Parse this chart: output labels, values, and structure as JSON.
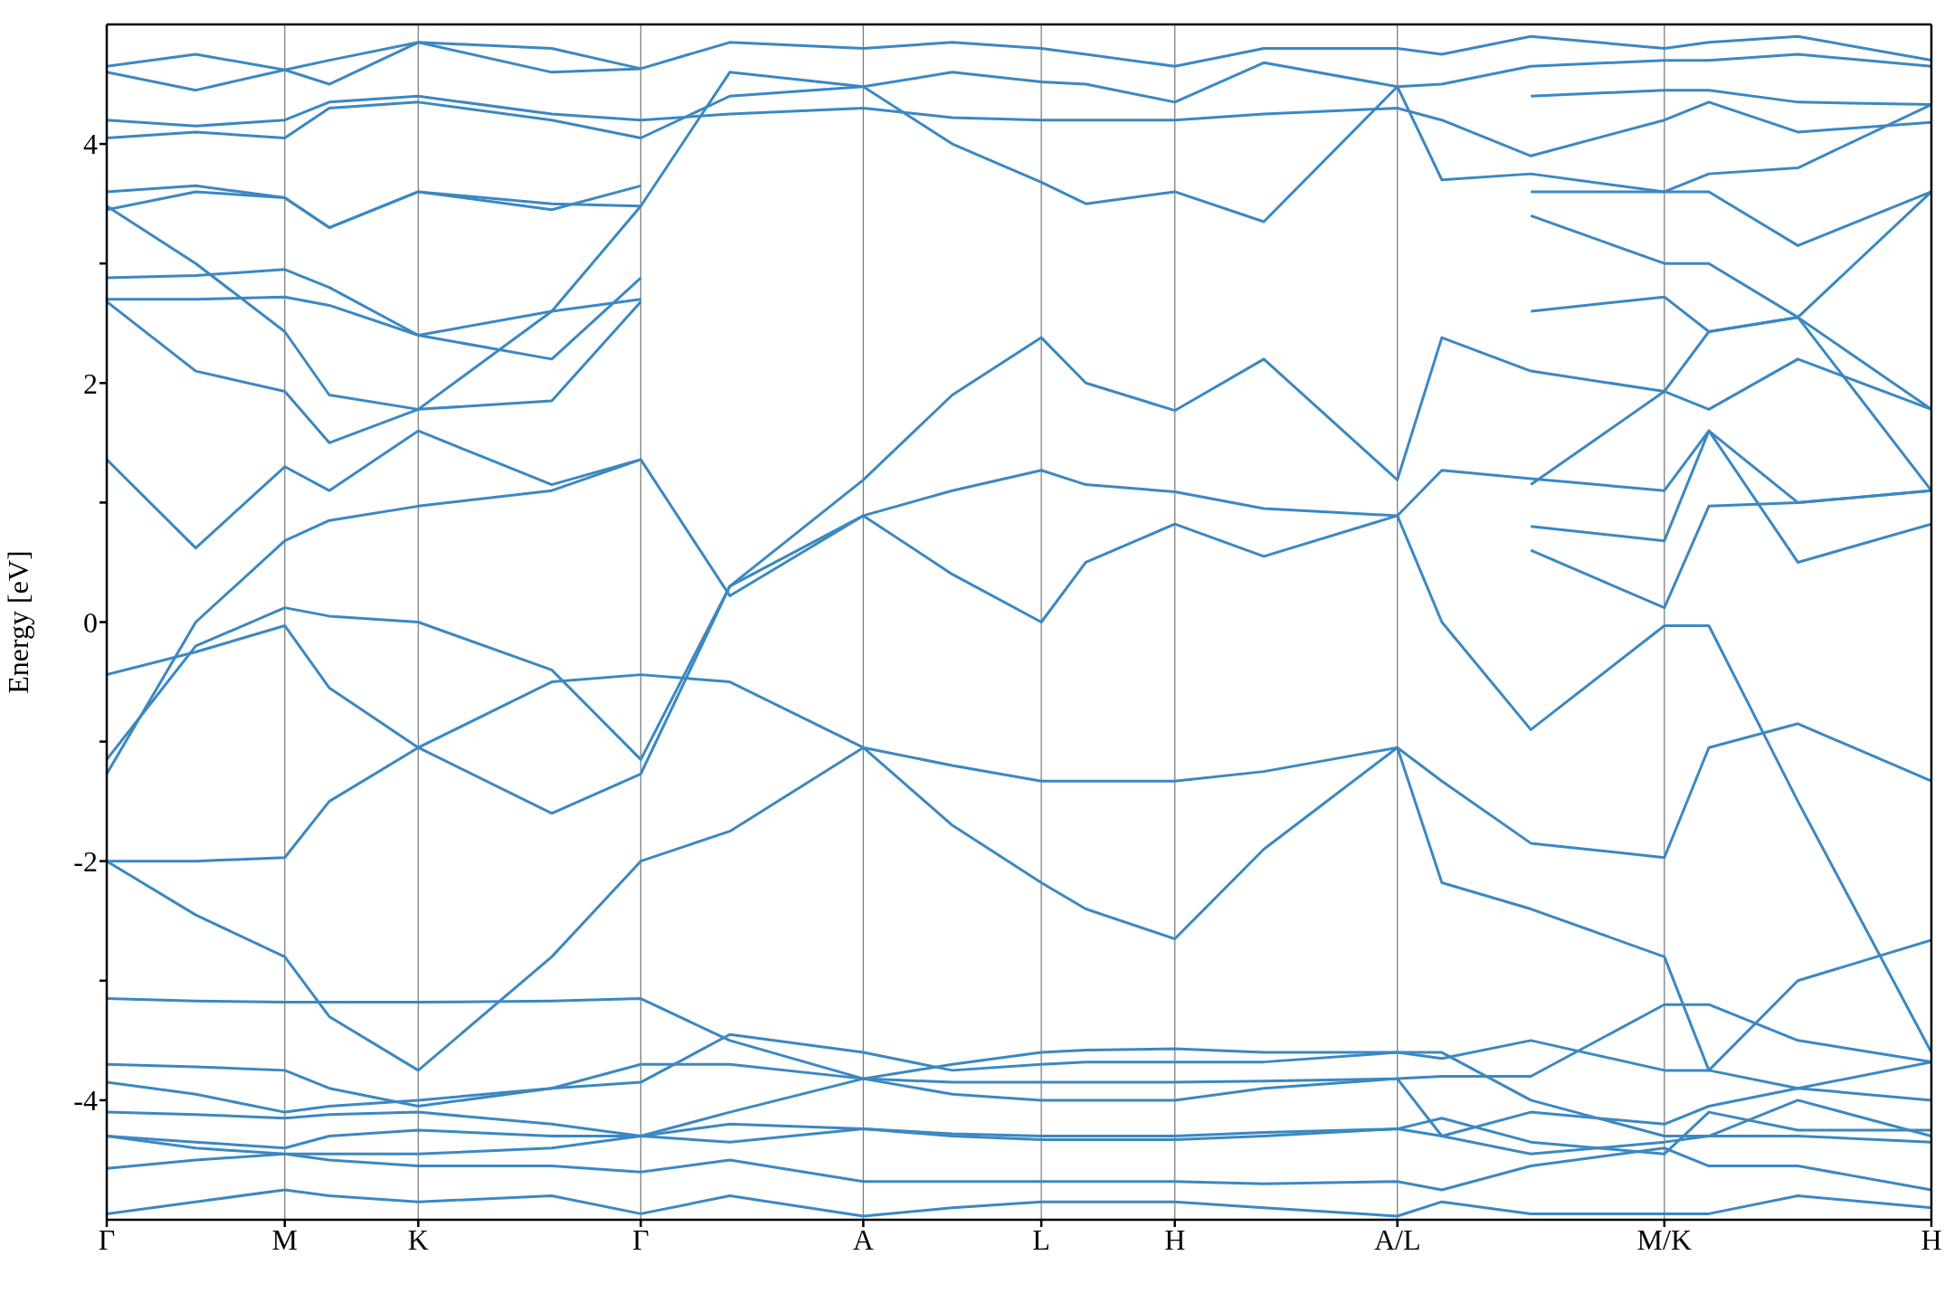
{
  "chart_data": {
    "type": "line",
    "ylabel": "Energy [eV]",
    "categories": [
      "Γ",
      null,
      null,
      null,
      "M",
      null,
      null,
      "K",
      null,
      null,
      null,
      null,
      "Γ",
      null,
      null,
      null,
      null,
      "A",
      null,
      null,
      null,
      "L",
      null,
      null,
      "H",
      null,
      null,
      null,
      null,
      "A/L",
      null,
      null,
      null,
      null,
      null,
      "M/K",
      null,
      null,
      null,
      null,
      null,
      "H"
    ],
    "ylim": [
      -5,
      5
    ],
    "yticks": [
      -4,
      {
        "value": -3,
        "label": null
      },
      -2,
      {
        "value": -1,
        "label": null
      },
      0,
      {
        "value": 1,
        "label": null
      },
      2,
      {
        "value": 3,
        "label": null
      },
      4
    ],
    "grid": "x",
    "series": [
      {
        "color": "#3b88c2",
        "values": [
          -4.95,
          null,
          -4.85,
          null,
          -4.75,
          -4.8,
          null,
          -4.85,
          null,
          null,
          -4.8,
          null,
          -4.95,
          null,
          -4.8,
          null,
          null,
          -4.97,
          null,
          -4.9,
          null,
          -4.85,
          -4.85,
          null,
          -4.85,
          null,
          -4.9,
          null,
          null,
          -4.97,
          -4.85,
          null,
          -4.95,
          null,
          null,
          -4.95,
          -4.95,
          null,
          -4.8,
          null,
          null,
          -4.9
        ]
      },
      {
        "color": "#3b88c2",
        "values": [
          -4.57,
          null,
          -4.5,
          null,
          -4.45,
          -4.5,
          null,
          -4.55,
          null,
          null,
          -4.55,
          null,
          -4.6,
          null,
          -4.5,
          null,
          null,
          -4.68,
          null,
          -4.68,
          null,
          -4.68,
          -4.68,
          null,
          -4.68,
          null,
          -4.7,
          null,
          null,
          -4.68,
          -4.75,
          null,
          -4.55,
          null,
          null,
          -4.4,
          -4.55,
          null,
          -4.55,
          null,
          null,
          -4.75
        ]
      },
      {
        "color": "#3b88c2",
        "values": [
          -4.3,
          null,
          -4.4,
          null,
          -4.45,
          -4.45,
          null,
          -4.45,
          null,
          null,
          -4.4,
          null,
          -4.3,
          null,
          -4.35,
          null,
          null,
          -4.24,
          null,
          -4.3,
          null,
          -4.33,
          -4.33,
          null,
          -4.33,
          null,
          -4.3,
          null,
          null,
          -4.24,
          -4.3,
          null,
          -4.45,
          null,
          null,
          -4.35,
          -4.3,
          null,
          -4.3,
          null,
          null,
          -4.35
        ]
      },
      {
        "color": "#3b88c2",
        "values": [
          -4.3,
          null,
          -4.35,
          null,
          -4.4,
          -4.3,
          null,
          -4.25,
          null,
          null,
          -4.3,
          null,
          -4.3,
          null,
          -4.2,
          null,
          null,
          -4.24,
          null,
          -4.28,
          null,
          -4.3,
          -4.3,
          null,
          -4.3,
          null,
          -4.27,
          null,
          null,
          -4.24,
          -4.15,
          null,
          -4.35,
          null,
          null,
          -4.45,
          -4.1,
          null,
          -4.25,
          null,
          null,
          -4.25
        ]
      },
      {
        "color": "#3b88c2",
        "values": [
          -4.1,
          null,
          -4.12,
          null,
          -4.15,
          -4.12,
          null,
          -4.1,
          null,
          null,
          -4.2,
          null,
          -4.3,
          null,
          -4.1,
          null,
          null,
          -3.82,
          null,
          -3.95,
          null,
          -4.0,
          -4.0,
          null,
          -4.0,
          null,
          -3.9,
          null,
          null,
          -3.82,
          -4.3,
          null,
          -4.1,
          null,
          null,
          -4.2,
          -4.05,
          null,
          -3.9,
          null,
          null,
          -4.0
        ]
      },
      {
        "color": "#3b88c2",
        "values": [
          -3.85,
          null,
          -3.95,
          null,
          -4.1,
          -4.05,
          null,
          -4.0,
          null,
          null,
          -3.9,
          null,
          -3.85,
          null,
          -3.45,
          null,
          null,
          -3.6,
          null,
          -3.75,
          null,
          -3.7,
          -3.68,
          null,
          -3.68,
          null,
          -3.68,
          null,
          null,
          -3.6,
          -3.65,
          null,
          -3.5,
          null,
          null,
          -3.75,
          -3.75,
          null,
          -3.9,
          null,
          null,
          -3.68
        ]
      },
      {
        "color": "#3b88c2",
        "values": [
          -3.7,
          null,
          -3.72,
          null,
          -3.75,
          -3.9,
          null,
          -4.05,
          null,
          null,
          -3.9,
          null,
          -3.7,
          null,
          -3.7,
          null,
          null,
          -3.82,
          null,
          -3.7,
          null,
          -3.6,
          -3.58,
          null,
          -3.57,
          null,
          -3.6,
          null,
          null,
          -3.6,
          -3.6,
          null,
          -4.0,
          null,
          null,
          -4.3,
          -4.3,
          null,
          -4.0,
          null,
          null,
          -4.3
        ]
      },
      {
        "color": "#3b88c2",
        "values": [
          -3.15,
          null,
          -3.17,
          null,
          -3.18,
          -3.18,
          null,
          -3.18,
          null,
          null,
          -3.17,
          null,
          -3.15,
          null,
          -3.5,
          null,
          null,
          -3.82,
          null,
          -3.85,
          null,
          -3.85,
          -3.85,
          null,
          -3.85,
          null,
          -3.84,
          null,
          null,
          -3.82,
          -3.8,
          null,
          -3.8,
          null,
          null,
          -3.2,
          -3.2,
          null,
          -3.5,
          null,
          null,
          -3.68
        ]
      },
      {
        "color": "#3b88c2",
        "values": [
          -2.0,
          null,
          -2.45,
          null,
          -2.8,
          -3.3,
          null,
          -3.75,
          null,
          null,
          -2.8,
          null,
          -2.0,
          null,
          -1.75,
          null,
          null,
          -1.05,
          null,
          -1.2,
          null,
          -1.33,
          -1.33,
          null,
          -1.33,
          null,
          -1.25,
          null,
          null,
          -1.05,
          -1.33,
          null,
          -1.85,
          null,
          null,
          -1.97,
          -1.05,
          null,
          -0.85,
          null,
          null,
          -1.33
        ]
      },
      {
        "color": "#3b88c2",
        "values": [
          -2.0,
          null,
          -2.0,
          null,
          -1.97,
          -1.5,
          null,
          -1.05,
          null,
          null,
          -0.5,
          null,
          -0.44,
          null,
          -0.5,
          null,
          null,
          -1.05,
          null,
          -1.7,
          null,
          -2.18,
          -2.4,
          null,
          -2.65,
          null,
          -1.9,
          null,
          null,
          -1.05,
          -2.18,
          null,
          -2.4,
          null,
          null,
          -2.8,
          -3.75,
          null,
          -3.0,
          null,
          null,
          -2.66
        ]
      },
      {
        "color": "#3b88c2",
        "values": [
          -1.27,
          null,
          0.0,
          null,
          0.68,
          0.85,
          null,
          0.97,
          null,
          null,
          1.1,
          null,
          1.36,
          null,
          0.22,
          null,
          null,
          0.89,
          null,
          0.4,
          null,
          0.0,
          0.5,
          null,
          0.82,
          null,
          0.55,
          null,
          null,
          0.89,
          0.0,
          null,
          -0.9,
          null,
          null,
          -0.03,
          -0.03,
          null,
          -1.5,
          null,
          null,
          -3.6
        ]
      },
      {
        "color": "#3b88c2",
        "values": [
          -1.15,
          null,
          -0.2,
          null,
          0.12,
          0.05,
          null,
          0.0,
          null,
          null,
          -0.4,
          null,
          -1.15,
          null,
          0.3,
          null,
          null,
          1.19,
          null,
          1.9,
          null,
          2.38,
          2.0,
          null,
          1.77,
          null,
          2.2,
          null,
          null,
          1.19,
          2.38,
          null,
          2.1,
          null,
          null,
          1.93,
          1.78,
          null,
          2.2,
          null,
          null,
          1.78
        ]
      },
      {
        "color": "#3b88c2",
        "values": [
          -0.44,
          null,
          -0.25,
          null,
          -0.03,
          -0.55,
          null,
          -1.05,
          null,
          null,
          -1.6,
          null,
          -1.27,
          null,
          0.3,
          null,
          null,
          0.89,
          null,
          1.1,
          null,
          1.27,
          1.15,
          null,
          1.09,
          null,
          0.95,
          null,
          null,
          0.89,
          1.27,
          null,
          1.2,
          null,
          null,
          1.1,
          1.6,
          null,
          0.5,
          null,
          null,
          0.82
        ]
      },
      {
        "color": "#3b88c2",
        "values": [
          4.2,
          null,
          4.15,
          null,
          4.2,
          4.35,
          null,
          4.4,
          null,
          null,
          4.25,
          null,
          4.2,
          null,
          4.25,
          null,
          null,
          4.3,
          null,
          4.22,
          null,
          4.2,
          4.2,
          null,
          4.2,
          null,
          4.25,
          null,
          null,
          4.3,
          4.2,
          null,
          3.9,
          null,
          null,
          4.2,
          4.35,
          null,
          4.1,
          null,
          null,
          4.18
        ]
      },
      {
        "color": "#3b88c2",
        "values": [
          4.05,
          null,
          4.1,
          null,
          4.05,
          4.3,
          null,
          4.35,
          null,
          null,
          4.2,
          null,
          4.05,
          null,
          4.4,
          null,
          null,
          4.48,
          null,
          4.6,
          null,
          4.52,
          4.5,
          null,
          4.35,
          null,
          4.68,
          null,
          null,
          4.48,
          4.5,
          null,
          4.65,
          null,
          null,
          4.7,
          4.7,
          null,
          4.75,
          null,
          null,
          4.65
        ]
      },
      {
        "color": "#3b88c2",
        "values": [
          3.45,
          null,
          3.6,
          null,
          3.55,
          3.3,
          null,
          3.6,
          null,
          null,
          3.5,
          null,
          3.48,
          null,
          4.6,
          null,
          null,
          4.48,
          null,
          4.0,
          null,
          3.68,
          3.5,
          null,
          3.6,
          null,
          3.35,
          null,
          null,
          4.48,
          3.7,
          null,
          3.75,
          null,
          null,
          3.6,
          3.75,
          null,
          3.8,
          null,
          null,
          4.33
        ]
      },
      {
        "color": "#3b88c2",
        "values": [
          4.65,
          null,
          4.75,
          null,
          4.62,
          4.7,
          null,
          4.85,
          null,
          null,
          4.8,
          null,
          4.63,
          null,
          4.85,
          null,
          null,
          4.8,
          null,
          4.85,
          null,
          4.8,
          4.75,
          null,
          4.65,
          null,
          4.8,
          null,
          null,
          4.8,
          4.75,
          null,
          4.9,
          null,
          null,
          4.8,
          4.85,
          null,
          4.9,
          null,
          null,
          4.7
        ]
      },
      {
        "color": "#3b88c2",
        "values": [
          3.6,
          null,
          3.65,
          null,
          3.55,
          3.3,
          null,
          3.6,
          null,
          null,
          3.45,
          null,
          3.65,
          null,
          null,
          null,
          null,
          null,
          null,
          null,
          null,
          null,
          null,
          null,
          null,
          null,
          null,
          null,
          null,
          null,
          null,
          null,
          null,
          null,
          null,
          null,
          null,
          null,
          null,
          null,
          null,
          null
        ]
      },
      {
        "color": "#3b88c2",
        "values": [
          null,
          null,
          null,
          null,
          null,
          null,
          null,
          null,
          null,
          null,
          null,
          null,
          null,
          null,
          null,
          null,
          null,
          null,
          null,
          null,
          null,
          null,
          null,
          null,
          null,
          null,
          null,
          null,
          null,
          null,
          null,
          null,
          3.6,
          null,
          null,
          3.6,
          3.6,
          null,
          3.15,
          null,
          null,
          3.6
        ]
      },
      {
        "color": "#3b88c2",
        "values": [
          2.88,
          null,
          2.9,
          null,
          2.95,
          2.8,
          null,
          2.4,
          null,
          null,
          2.2,
          null,
          2.88,
          null,
          null,
          null,
          null,
          null,
          null,
          null,
          null,
          null,
          null,
          null,
          null,
          null,
          null,
          null,
          null,
          null,
          null,
          null,
          null,
          null,
          null,
          null,
          null,
          null,
          null,
          null,
          null,
          null
        ]
      },
      {
        "color": "#3b88c2",
        "values": [
          null,
          null,
          null,
          null,
          null,
          null,
          null,
          null,
          null,
          null,
          null,
          null,
          null,
          null,
          null,
          null,
          null,
          null,
          null,
          null,
          null,
          null,
          null,
          null,
          null,
          null,
          null,
          null,
          null,
          null,
          null,
          null,
          3.4,
          null,
          null,
          3.0,
          3.0,
          null,
          2.55,
          null,
          null,
          1.1
        ]
      },
      {
        "color": "#3b88c2",
        "values": [
          2.7,
          null,
          2.7,
          null,
          2.72,
          2.65,
          null,
          2.4,
          null,
          null,
          2.6,
          null,
          2.7,
          null,
          null,
          null,
          null,
          null,
          null,
          null,
          null,
          null,
          null,
          null,
          null,
          null,
          null,
          null,
          null,
          null,
          null,
          null,
          null,
          null,
          null,
          null,
          null,
          null,
          null,
          null,
          null,
          null
        ]
      },
      {
        "color": "#3b88c2",
        "values": [
          null,
          null,
          null,
          null,
          null,
          null,
          null,
          null,
          null,
          null,
          null,
          null,
          null,
          null,
          null,
          null,
          null,
          null,
          null,
          null,
          null,
          null,
          null,
          null,
          null,
          null,
          null,
          null,
          null,
          null,
          null,
          null,
          2.6,
          null,
          null,
          2.72,
          2.43,
          null,
          2.55,
          null,
          null,
          1.78
        ]
      },
      {
        "color": "#3b88c2",
        "values": [
          2.68,
          null,
          2.1,
          null,
          1.93,
          1.5,
          null,
          1.78,
          null,
          null,
          1.85,
          null,
          2.68,
          null,
          null,
          null,
          null,
          null,
          null,
          null,
          null,
          null,
          null,
          null,
          null,
          null,
          null,
          null,
          null,
          null,
          null,
          null,
          null,
          null,
          null,
          null,
          null,
          null,
          null,
          null,
          null,
          null
        ]
      },
      {
        "color": "#3b88c2",
        "values": [
          null,
          null,
          null,
          null,
          null,
          null,
          null,
          null,
          null,
          null,
          null,
          null,
          null,
          null,
          null,
          null,
          null,
          null,
          null,
          null,
          null,
          null,
          null,
          null,
          null,
          null,
          null,
          null,
          null,
          null,
          null,
          null,
          1.15,
          null,
          null,
          1.93,
          2.43,
          null,
          2.55,
          null,
          null,
          3.6
        ]
      },
      {
        "color": "#3b88c2",
        "values": [
          1.36,
          null,
          0.62,
          null,
          1.3,
          1.1,
          null,
          1.6,
          null,
          null,
          1.15,
          null,
          1.36,
          null,
          null,
          null,
          null,
          null,
          null,
          null,
          null,
          null,
          null,
          null,
          null,
          null,
          null,
          null,
          null,
          null,
          null,
          null,
          null,
          null,
          null,
          null,
          null,
          null,
          null,
          null,
          null,
          null
        ]
      },
      {
        "color": "#3b88c2",
        "values": [
          null,
          null,
          null,
          null,
          null,
          null,
          null,
          null,
          null,
          null,
          null,
          null,
          null,
          null,
          null,
          null,
          null,
          null,
          null,
          null,
          null,
          null,
          null,
          null,
          null,
          null,
          null,
          null,
          null,
          null,
          null,
          null,
          0.8,
          null,
          null,
          0.68,
          1.6,
          null,
          1.0,
          null,
          null,
          1.1
        ]
      },
      {
        "color": "#3b88c2",
        "values": [
          3.48,
          null,
          3.0,
          null,
          2.43,
          1.9,
          null,
          1.78,
          null,
          null,
          2.6,
          null,
          3.48,
          null,
          null,
          null,
          null,
          null,
          null,
          null,
          null,
          null,
          null,
          null,
          null,
          null,
          null,
          null,
          null,
          null,
          null,
          null,
          null,
          null,
          null,
          null,
          null,
          null,
          null,
          null,
          null,
          null
        ]
      },
      {
        "color": "#3b88c2",
        "values": [
          null,
          null,
          null,
          null,
          null,
          null,
          null,
          null,
          null,
          null,
          null,
          null,
          null,
          null,
          null,
          null,
          null,
          null,
          null,
          null,
          null,
          null,
          null,
          null,
          null,
          null,
          null,
          null,
          null,
          null,
          null,
          null,
          0.6,
          null,
          null,
          0.12,
          0.97,
          null,
          1.0,
          null,
          null,
          1.1
        ]
      },
      {
        "color": "#3b88c2",
        "values": [
          4.6,
          null,
          4.45,
          null,
          4.62,
          4.5,
          null,
          4.85,
          null,
          null,
          4.6,
          null,
          4.63,
          null,
          null,
          null,
          null,
          null,
          null,
          null,
          null,
          null,
          null,
          null,
          null,
          null,
          null,
          null,
          null,
          null,
          null,
          null,
          null,
          null,
          null,
          null,
          null,
          null,
          null,
          null,
          null,
          null
        ]
      },
      {
        "color": "#3b88c2",
        "values": [
          null,
          null,
          null,
          null,
          null,
          null,
          null,
          null,
          null,
          null,
          null,
          null,
          null,
          null,
          null,
          null,
          null,
          null,
          null,
          null,
          null,
          null,
          null,
          null,
          null,
          null,
          null,
          null,
          null,
          null,
          null,
          null,
          4.4,
          null,
          null,
          4.45,
          4.45,
          null,
          4.35,
          null,
          null,
          4.33
        ]
      }
    ]
  }
}
